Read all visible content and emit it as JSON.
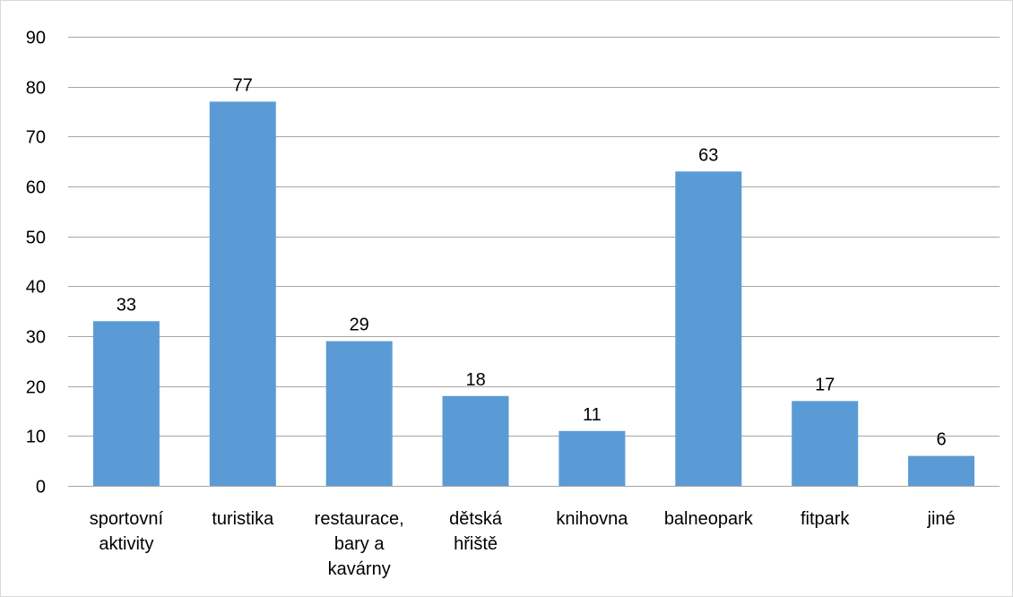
{
  "chart_data": {
    "type": "bar",
    "categories": [
      [
        "sportovní",
        "aktivity"
      ],
      [
        "turistika"
      ],
      [
        "restaurace,",
        "bary a",
        "kavárny"
      ],
      [
        "dětská",
        "hřiště"
      ],
      [
        "knihovna"
      ],
      [
        "balneopark"
      ],
      [
        "fitpark"
      ],
      [
        "jiné"
      ]
    ],
    "values": [
      33,
      77,
      29,
      18,
      11,
      63,
      17,
      6
    ],
    "ylim": [
      0,
      90
    ],
    "yticks": [
      0,
      10,
      20,
      30,
      40,
      50,
      60,
      70,
      80,
      90
    ],
    "grid": true,
    "legend": "none",
    "data_labels": true,
    "bar_color": "#5b9bd5"
  }
}
